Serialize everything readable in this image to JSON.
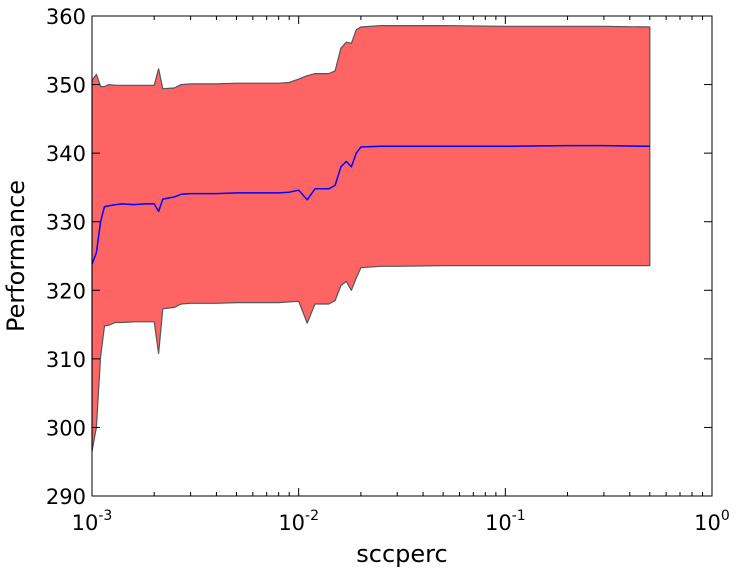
{
  "chart_data": {
    "type": "area",
    "title": "",
    "xlabel": "sccperc",
    "ylabel": "Performance",
    "xscale": "log",
    "xlim": [
      0.001,
      1
    ],
    "ylim": [
      290,
      360
    ],
    "grid": false,
    "x_ticks": [
      {
        "value": 0.001,
        "base": "10",
        "exp": "-3"
      },
      {
        "value": 0.01,
        "base": "10",
        "exp": "-2"
      },
      {
        "value": 0.1,
        "base": "10",
        "exp": "-1"
      },
      {
        "value": 1,
        "base": "10",
        "exp": "0"
      }
    ],
    "y_ticks": [
      290,
      300,
      310,
      320,
      330,
      340,
      350,
      360
    ],
    "colors": {
      "band": "#ff6464",
      "band_edge": "#555555",
      "mean": "#0000ff"
    },
    "series": [
      {
        "x": [
          0.001,
          0.00105,
          0.0011,
          0.00115,
          0.0012,
          0.0013,
          0.0014,
          0.0016,
          0.0018,
          0.002,
          0.0021,
          0.0022,
          0.0025,
          0.0027,
          0.003,
          0.004,
          0.005,
          0.006,
          0.008,
          0.009,
          0.01,
          0.011,
          0.012,
          0.013,
          0.014,
          0.015,
          0.016,
          0.017,
          0.018,
          0.019,
          0.02,
          0.025,
          0.03,
          0.05,
          0.1,
          0.2,
          0.3,
          0.5
        ],
        "mean": [
          323.8,
          325.5,
          330.0,
          332.2,
          332.3,
          332.5,
          332.6,
          332.5,
          332.6,
          332.6,
          331.5,
          333.3,
          333.6,
          334.0,
          334.1,
          334.1,
          334.2,
          334.2,
          334.2,
          334.3,
          334.6,
          333.2,
          334.8,
          334.8,
          334.8,
          335.3,
          338.0,
          338.8,
          338.0,
          340.0,
          340.9,
          341.0,
          341.0,
          341.0,
          341.0,
          341.1,
          341.1,
          341.0
        ],
        "upper": [
          350.6,
          351.5,
          349.7,
          349.7,
          350.0,
          349.9,
          349.9,
          349.9,
          349.9,
          349.9,
          352.3,
          349.4,
          349.5,
          350.0,
          350.1,
          350.1,
          350.2,
          350.2,
          350.2,
          350.3,
          350.8,
          351.3,
          351.6,
          351.6,
          351.6,
          352.0,
          355.3,
          356.2,
          356.0,
          358.0,
          358.4,
          358.6,
          358.6,
          358.6,
          358.5,
          358.5,
          358.5,
          358.4
        ],
        "lower": [
          296.5,
          300.0,
          310.3,
          314.8,
          314.9,
          315.3,
          315.3,
          315.4,
          315.4,
          315.4,
          310.8,
          317.3,
          317.5,
          318.0,
          318.1,
          318.1,
          318.2,
          318.2,
          318.2,
          318.3,
          318.4,
          315.2,
          318.0,
          318.0,
          318.0,
          318.5,
          320.7,
          321.3,
          320.0,
          321.8,
          323.3,
          323.5,
          323.5,
          323.6,
          323.6,
          323.6,
          323.6,
          323.6
        ]
      }
    ]
  }
}
